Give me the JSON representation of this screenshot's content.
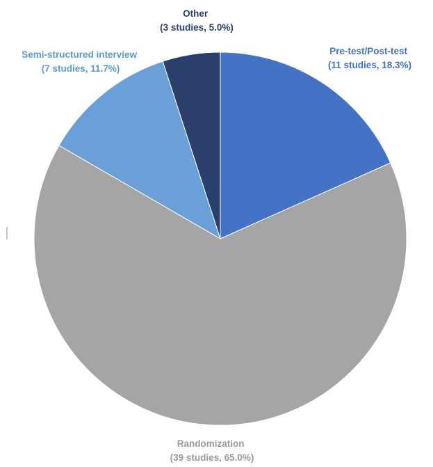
{
  "chart_data": {
    "type": "pie",
    "title": "",
    "slices": [
      {
        "label": "Pre-test/Post-test",
        "detail": "(11 studies, 18.3%)",
        "studies": 11,
        "percent": 18.3,
        "color": "#4472c4",
        "label_color": "#4472c4"
      },
      {
        "label": "Randomization",
        "detail": "(39 studies, 65.0%)",
        "studies": 39,
        "percent": 65.0,
        "color": "#a5a5a5",
        "label_color": "#9a9a9a"
      },
      {
        "label": "Semi-structured interview",
        "detail": "(7 studies, 11.7%)",
        "studies": 7,
        "percent": 11.7,
        "color": "#6a9fd8",
        "label_color": "#5b9bd5"
      },
      {
        "label": "Other",
        "detail": "(3 studies, 5.0%)",
        "studies": 3,
        "percent": 5.0,
        "color": "#2b3f6c",
        "label_color": "#2b3f6c"
      }
    ],
    "legend": "none",
    "start_angle": "12 o'clock",
    "direction": "clockwise"
  }
}
